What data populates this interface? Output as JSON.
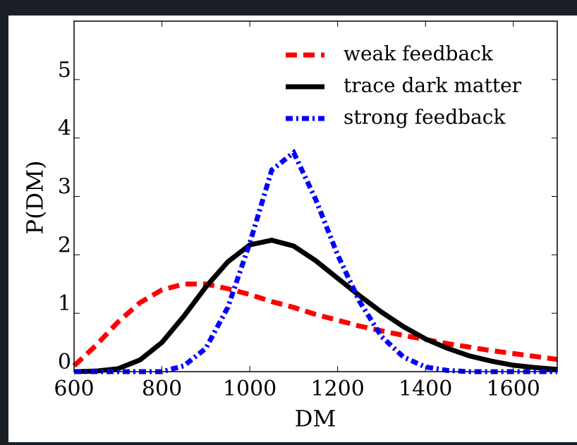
{
  "chart_data": {
    "type": "line",
    "x_label": "DM",
    "y_label": "P(DM)",
    "x": [
      600,
      650,
      700,
      750,
      800,
      850,
      900,
      950,
      1000,
      1050,
      1100,
      1150,
      1200,
      1250,
      1300,
      1350,
      1400,
      1450,
      1500,
      1550,
      1600,
      1650,
      1700
    ],
    "series": [
      {
        "name": "weak feedback",
        "color": "#ff0000",
        "dash": "dashed",
        "values": [
          0.1,
          0.45,
          0.85,
          1.18,
          1.4,
          1.5,
          1.5,
          1.42,
          1.32,
          1.2,
          1.1,
          0.98,
          0.88,
          0.78,
          0.7,
          0.62,
          0.55,
          0.48,
          0.42,
          0.36,
          0.31,
          0.26,
          0.21
        ]
      },
      {
        "name": "trace dark matter",
        "color": "#000000",
        "dash": "solid",
        "values": [
          0,
          0.01,
          0.05,
          0.2,
          0.5,
          0.95,
          1.45,
          1.88,
          2.17,
          2.25,
          2.15,
          1.9,
          1.6,
          1.3,
          1.02,
          0.77,
          0.56,
          0.4,
          0.27,
          0.18,
          0.11,
          0.07,
          0.04
        ]
      },
      {
        "name": "strong feedback",
        "color": "#0000ff",
        "dash": "dashdot",
        "values": [
          0,
          0,
          0,
          0,
          0,
          0.1,
          0.4,
          1.1,
          2.2,
          3.45,
          3.75,
          2.95,
          2.0,
          1.2,
          0.6,
          0.25,
          0.08,
          0.02,
          0,
          0,
          0,
          0,
          0
        ]
      }
    ],
    "xlim": [
      600,
      1700
    ],
    "ylim": [
      0,
      6
    ],
    "xticks": [
      600,
      800,
      1000,
      1200,
      1400,
      1600
    ],
    "yticks": [
      0,
      1,
      2,
      3,
      4,
      5
    ],
    "legend": "upper right"
  }
}
